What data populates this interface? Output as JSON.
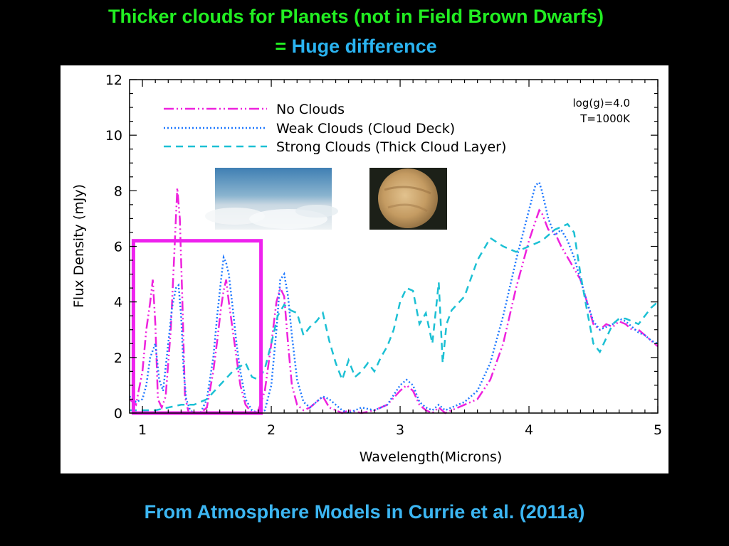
{
  "slide": {
    "title_line1": "Thicker clouds for Planets (not in Field Brown Dwarfs)",
    "title_line2_eq": "=",
    "title_line2_text": " Huge difference",
    "footer": "From Atmosphere Models in Currie et al. (2011a)"
  },
  "colors": {
    "no_clouds": "#ee22dd",
    "weak_clouds": "#1e78ff",
    "strong_clouds": "#1cc0d4",
    "highlight_box": "#ee22ee"
  },
  "chart_data": {
    "type": "line",
    "xlabel": "Wavelength(Microns)",
    "ylabel": "Flux Density (mJy)",
    "xlim": [
      0.9,
      5.0
    ],
    "ylim": [
      0,
      12
    ],
    "xticks": [
      "1",
      "2",
      "3",
      "4",
      "5"
    ],
    "yticks": [
      "0",
      "2",
      "4",
      "6",
      "8",
      "10",
      "12"
    ],
    "annotation_line1": "log(g)=4.0",
    "annotation_line2": "T=1000K",
    "highlight_range": [
      0.93,
      1.92
    ],
    "highlight_ylim": [
      0,
      6.2
    ],
    "legend_position": "top-left",
    "images": [
      "cloud-layer-photo",
      "venus-photo"
    ],
    "series": [
      {
        "name": "No Clouds",
        "style": "dash-dot-dot",
        "color": "#ee22dd",
        "x": [
          0.9,
          0.95,
          1.0,
          1.03,
          1.06,
          1.08,
          1.1,
          1.12,
          1.15,
          1.18,
          1.22,
          1.25,
          1.27,
          1.29,
          1.31,
          1.33,
          1.36,
          1.4,
          1.45,
          1.5,
          1.55,
          1.58,
          1.61,
          1.63,
          1.65,
          1.67,
          1.7,
          1.73,
          1.76,
          1.8,
          1.85,
          1.9,
          1.95,
          2.0,
          2.04,
          2.07,
          2.1,
          2.13,
          2.16,
          2.2,
          2.25,
          2.3,
          2.35,
          2.4,
          2.45,
          2.5,
          2.55,
          2.6,
          2.7,
          2.8,
          2.9,
          3.0,
          3.05,
          3.1,
          3.15,
          3.2,
          3.25,
          3.3,
          3.35,
          3.4,
          3.5,
          3.6,
          3.7,
          3.8,
          3.9,
          4.0,
          4.05,
          4.08,
          4.1,
          4.15,
          4.2,
          4.25,
          4.3,
          4.35,
          4.4,
          4.45,
          4.5,
          4.55,
          4.6,
          4.65,
          4.7,
          4.75,
          4.8,
          4.85,
          4.9,
          4.95,
          5.0
        ],
        "y": [
          0.5,
          0.3,
          1.5,
          3.0,
          4.0,
          4.8,
          3.2,
          0.5,
          0.2,
          0.6,
          3.0,
          6.0,
          8.1,
          7.0,
          4.0,
          0.6,
          0.0,
          0.0,
          0.0,
          0.2,
          1.5,
          2.6,
          3.8,
          4.4,
          4.8,
          4.0,
          3.0,
          2.0,
          1.0,
          0.3,
          0.0,
          0.1,
          0.8,
          2.5,
          4.0,
          4.5,
          4.2,
          2.5,
          1.0,
          0.3,
          0.1,
          0.2,
          0.4,
          0.6,
          0.2,
          0.1,
          0.0,
          0.1,
          0.0,
          0.1,
          0.3,
          0.8,
          1.0,
          0.8,
          0.3,
          0.1,
          0.0,
          0.2,
          0.0,
          0.1,
          0.3,
          0.5,
          1.2,
          2.5,
          4.5,
          6.2,
          6.9,
          7.3,
          7.2,
          6.6,
          6.5,
          6.0,
          5.6,
          5.2,
          4.8,
          4.0,
          3.2,
          3.0,
          3.2,
          3.1,
          3.3,
          3.2,
          3.0,
          3.0,
          2.8,
          2.6,
          2.4
        ]
      },
      {
        "name": "Weak Clouds (Cloud Deck)",
        "style": "dotted",
        "color": "#1e78ff",
        "x": [
          0.9,
          0.95,
          1.0,
          1.03,
          1.06,
          1.1,
          1.13,
          1.16,
          1.2,
          1.23,
          1.26,
          1.28,
          1.3,
          1.32,
          1.34,
          1.37,
          1.4,
          1.45,
          1.5,
          1.55,
          1.58,
          1.61,
          1.63,
          1.65,
          1.67,
          1.7,
          1.73,
          1.76,
          1.8,
          1.85,
          1.9,
          1.95,
          2.0,
          2.04,
          2.07,
          2.1,
          2.13,
          2.16,
          2.2,
          2.25,
          2.3,
          2.35,
          2.4,
          2.45,
          2.5,
          2.55,
          2.6,
          2.7,
          2.8,
          2.9,
          3.0,
          3.05,
          3.1,
          3.15,
          3.2,
          3.25,
          3.3,
          3.35,
          3.4,
          3.5,
          3.6,
          3.7,
          3.8,
          3.9,
          4.0,
          4.05,
          4.08,
          4.1,
          4.15,
          4.2,
          4.25,
          4.3,
          4.35,
          4.4,
          4.45,
          4.5,
          4.55,
          4.6,
          4.65,
          4.7,
          4.75,
          4.8,
          4.85,
          4.9,
          4.95,
          5.0
        ],
        "y": [
          0.6,
          0.4,
          0.5,
          1.0,
          2.0,
          2.5,
          1.2,
          0.8,
          2.5,
          3.8,
          4.5,
          4.6,
          3.5,
          1.5,
          0.5,
          0.1,
          0.0,
          0.0,
          0.5,
          2.0,
          3.5,
          4.8,
          5.6,
          5.4,
          5.0,
          3.8,
          2.5,
          1.5,
          0.5,
          0.1,
          0.0,
          0.1,
          1.0,
          3.0,
          4.8,
          5.0,
          4.2,
          2.8,
          1.2,
          0.4,
          0.2,
          0.4,
          0.6,
          0.5,
          0.3,
          0.1,
          0.0,
          0.2,
          0.1,
          0.3,
          1.0,
          1.2,
          1.0,
          0.4,
          0.2,
          0.1,
          0.3,
          0.1,
          0.2,
          0.4,
          0.8,
          1.8,
          3.5,
          5.5,
          7.3,
          8.2,
          8.3,
          8.0,
          7.0,
          6.4,
          6.6,
          6.2,
          5.6,
          4.8,
          4.0,
          3.3,
          3.0,
          3.1,
          3.2,
          3.4,
          3.3,
          3.1,
          2.9,
          2.8,
          2.6,
          2.5
        ]
      },
      {
        "name": "Strong Clouds (Thick Cloud Layer)",
        "style": "dashed",
        "color": "#1cc0d4",
        "x": [
          0.9,
          1.0,
          1.1,
          1.2,
          1.3,
          1.4,
          1.5,
          1.6,
          1.7,
          1.8,
          1.85,
          1.9,
          1.95,
          2.0,
          2.05,
          2.1,
          2.15,
          2.2,
          2.25,
          2.3,
          2.35,
          2.4,
          2.45,
          2.5,
          2.55,
          2.6,
          2.65,
          2.7,
          2.75,
          2.8,
          2.85,
          2.9,
          2.95,
          3.0,
          3.05,
          3.1,
          3.15,
          3.2,
          3.25,
          3.3,
          3.33,
          3.36,
          3.4,
          3.5,
          3.6,
          3.7,
          3.8,
          3.9,
          4.0,
          4.1,
          4.2,
          4.3,
          4.35,
          4.4,
          4.45,
          4.5,
          4.55,
          4.6,
          4.65,
          4.7,
          4.75,
          4.8,
          4.85,
          4.9,
          4.95,
          5.0
        ],
        "y": [
          0.1,
          0.1,
          0.1,
          0.2,
          0.3,
          0.3,
          0.5,
          1.0,
          1.5,
          1.8,
          1.3,
          1.2,
          1.6,
          2.5,
          3.5,
          3.9,
          3.7,
          3.6,
          2.8,
          3.1,
          3.3,
          3.6,
          2.6,
          1.8,
          1.2,
          1.9,
          1.3,
          1.5,
          1.8,
          1.5,
          2.0,
          2.4,
          3.0,
          4.0,
          4.5,
          4.4,
          3.2,
          3.6,
          2.5,
          4.7,
          1.8,
          3.2,
          3.7,
          4.2,
          5.5,
          6.3,
          6.0,
          5.8,
          6.0,
          6.2,
          6.6,
          6.8,
          6.5,
          5.0,
          3.7,
          2.5,
          2.2,
          2.7,
          3.2,
          3.4,
          3.4,
          3.3,
          3.2,
          3.5,
          3.8,
          4.0
        ]
      }
    ]
  }
}
